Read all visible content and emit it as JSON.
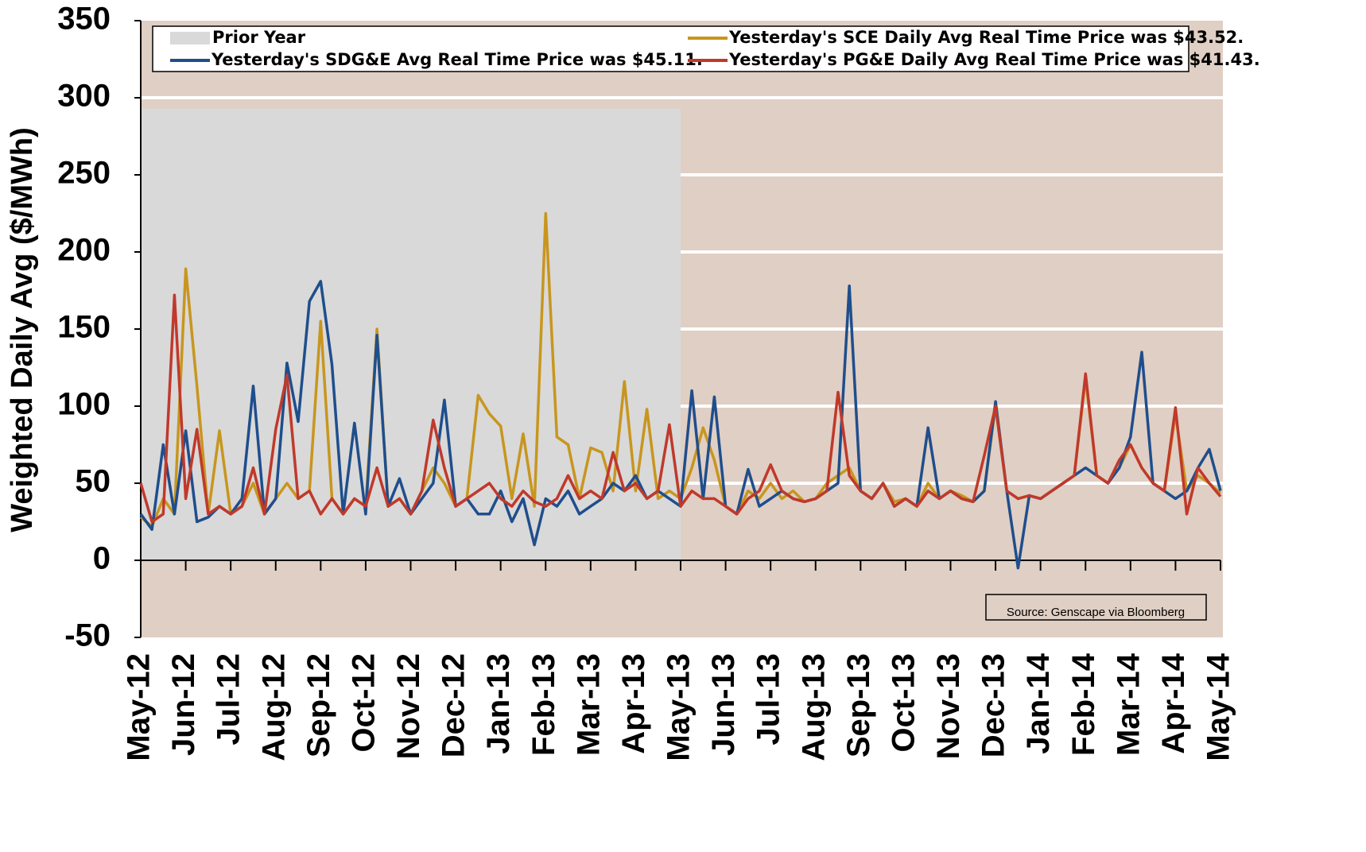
{
  "chart_data": {
    "type": "line",
    "y_label": "Weighted Daily Avg ($/MWh)",
    "annotation": "Source: Genscape via Bloomberg",
    "categories": [
      "May-12",
      null,
      null,
      null,
      "Jun-12",
      null,
      null,
      null,
      "Jul-12",
      null,
      null,
      null,
      "Aug-12",
      null,
      null,
      null,
      "Sep-12",
      null,
      null,
      null,
      "Oct-12",
      null,
      null,
      null,
      "Nov-12",
      null,
      null,
      null,
      "Dec-12",
      null,
      null,
      null,
      "Jan-13",
      null,
      null,
      null,
      "Feb-13",
      null,
      null,
      null,
      "Mar-13",
      null,
      null,
      null,
      "Apr-13",
      null,
      null,
      null,
      "May-13",
      null,
      null,
      null,
      "Jun-13",
      null,
      null,
      null,
      "Jul-13",
      null,
      null,
      null,
      "Aug-13",
      null,
      null,
      null,
      "Sep-13",
      null,
      null,
      null,
      "Oct-13",
      null,
      null,
      null,
      "Nov-13",
      null,
      null,
      null,
      "Dec-13",
      null,
      null,
      null,
      "Jan-14",
      null,
      null,
      null,
      "Feb-14",
      null,
      null,
      null,
      "Mar-14",
      null,
      null,
      null,
      "Apr-14",
      null,
      null,
      null,
      "May-14"
    ],
    "shade": {
      "name": "Prior Year",
      "from": "May-12",
      "to": "May-13",
      "top": 293,
      "color": "#d9d9d9"
    },
    "series": [
      {
        "name": "Yesterday's SCE Daily Avg Real Time Price was $43.52.",
        "color": "#c8961e",
        "values": [
          28,
          22,
          40,
          30,
          189,
          113,
          30,
          84,
          30,
          35,
          50,
          30,
          40,
          50,
          40,
          45,
          155,
          40,
          30,
          40,
          35,
          150,
          35,
          40,
          30,
          45,
          60,
          50,
          35,
          40,
          107,
          95,
          87,
          40,
          82,
          35,
          225,
          80,
          75,
          40,
          73,
          70,
          45,
          116,
          45,
          98,
          40,
          45,
          40,
          60,
          86,
          65,
          35,
          30,
          45,
          40,
          50,
          40,
          45,
          38,
          40,
          50,
          55,
          60,
          45,
          40,
          50,
          38,
          40,
          35,
          50,
          40,
          45,
          42,
          38,
          45,
          100,
          45,
          40,
          42,
          40,
          45,
          50,
          55,
          118,
          55,
          50,
          60,
          75,
          60,
          50,
          45,
          95,
          45,
          55,
          50,
          43.52
        ]
      },
      {
        "name": "Yesterday's SDG&E Avg Real Time Price was $45.11.",
        "color": "#1f4e8c",
        "values": [
          30,
          20,
          75,
          30,
          84,
          25,
          28,
          35,
          30,
          40,
          113,
          30,
          40,
          128,
          90,
          168,
          181,
          127,
          30,
          89,
          30,
          146,
          35,
          53,
          30,
          40,
          50,
          104,
          35,
          40,
          30,
          30,
          45,
          25,
          40,
          10,
          40,
          35,
          45,
          30,
          35,
          40,
          50,
          45,
          55,
          40,
          45,
          40,
          35,
          110,
          40,
          106,
          35,
          30,
          59,
          35,
          40,
          45,
          40,
          38,
          40,
          45,
          50,
          178,
          45,
          40,
          50,
          35,
          40,
          35,
          86,
          40,
          45,
          40,
          38,
          45,
          103,
          45,
          -5,
          42,
          40,
          45,
          50,
          55,
          60,
          55,
          50,
          60,
          80,
          135,
          50,
          45,
          40,
          45,
          60,
          72,
          45.11
        ]
      },
      {
        "name": "Yesterday's PG&E Daily Avg Real Time Price was $41.43.",
        "color": "#c0392b",
        "values": [
          50,
          25,
          30,
          172,
          40,
          85,
          30,
          35,
          30,
          35,
          60,
          30,
          85,
          120,
          40,
          45,
          30,
          40,
          30,
          40,
          35,
          60,
          35,
          40,
          30,
          45,
          91,
          60,
          35,
          40,
          45,
          50,
          40,
          35,
          45,
          38,
          35,
          40,
          55,
          40,
          45,
          40,
          70,
          45,
          50,
          40,
          45,
          88,
          35,
          45,
          40,
          40,
          35,
          30,
          40,
          45,
          62,
          45,
          40,
          38,
          40,
          45,
          109,
          55,
          45,
          40,
          50,
          35,
          40,
          35,
          45,
          40,
          45,
          40,
          38,
          68,
          100,
          45,
          40,
          42,
          40,
          45,
          50,
          55,
          121,
          55,
          50,
          65,
          75,
          60,
          50,
          45,
          99,
          30,
          60,
          50,
          41.43
        ]
      }
    ],
    "ylim": [
      -50,
      350
    ],
    "yticks": [
      -50,
      0,
      50,
      100,
      150,
      200,
      250,
      300,
      350
    ],
    "grid": true,
    "background": "#e0cfc4"
  }
}
